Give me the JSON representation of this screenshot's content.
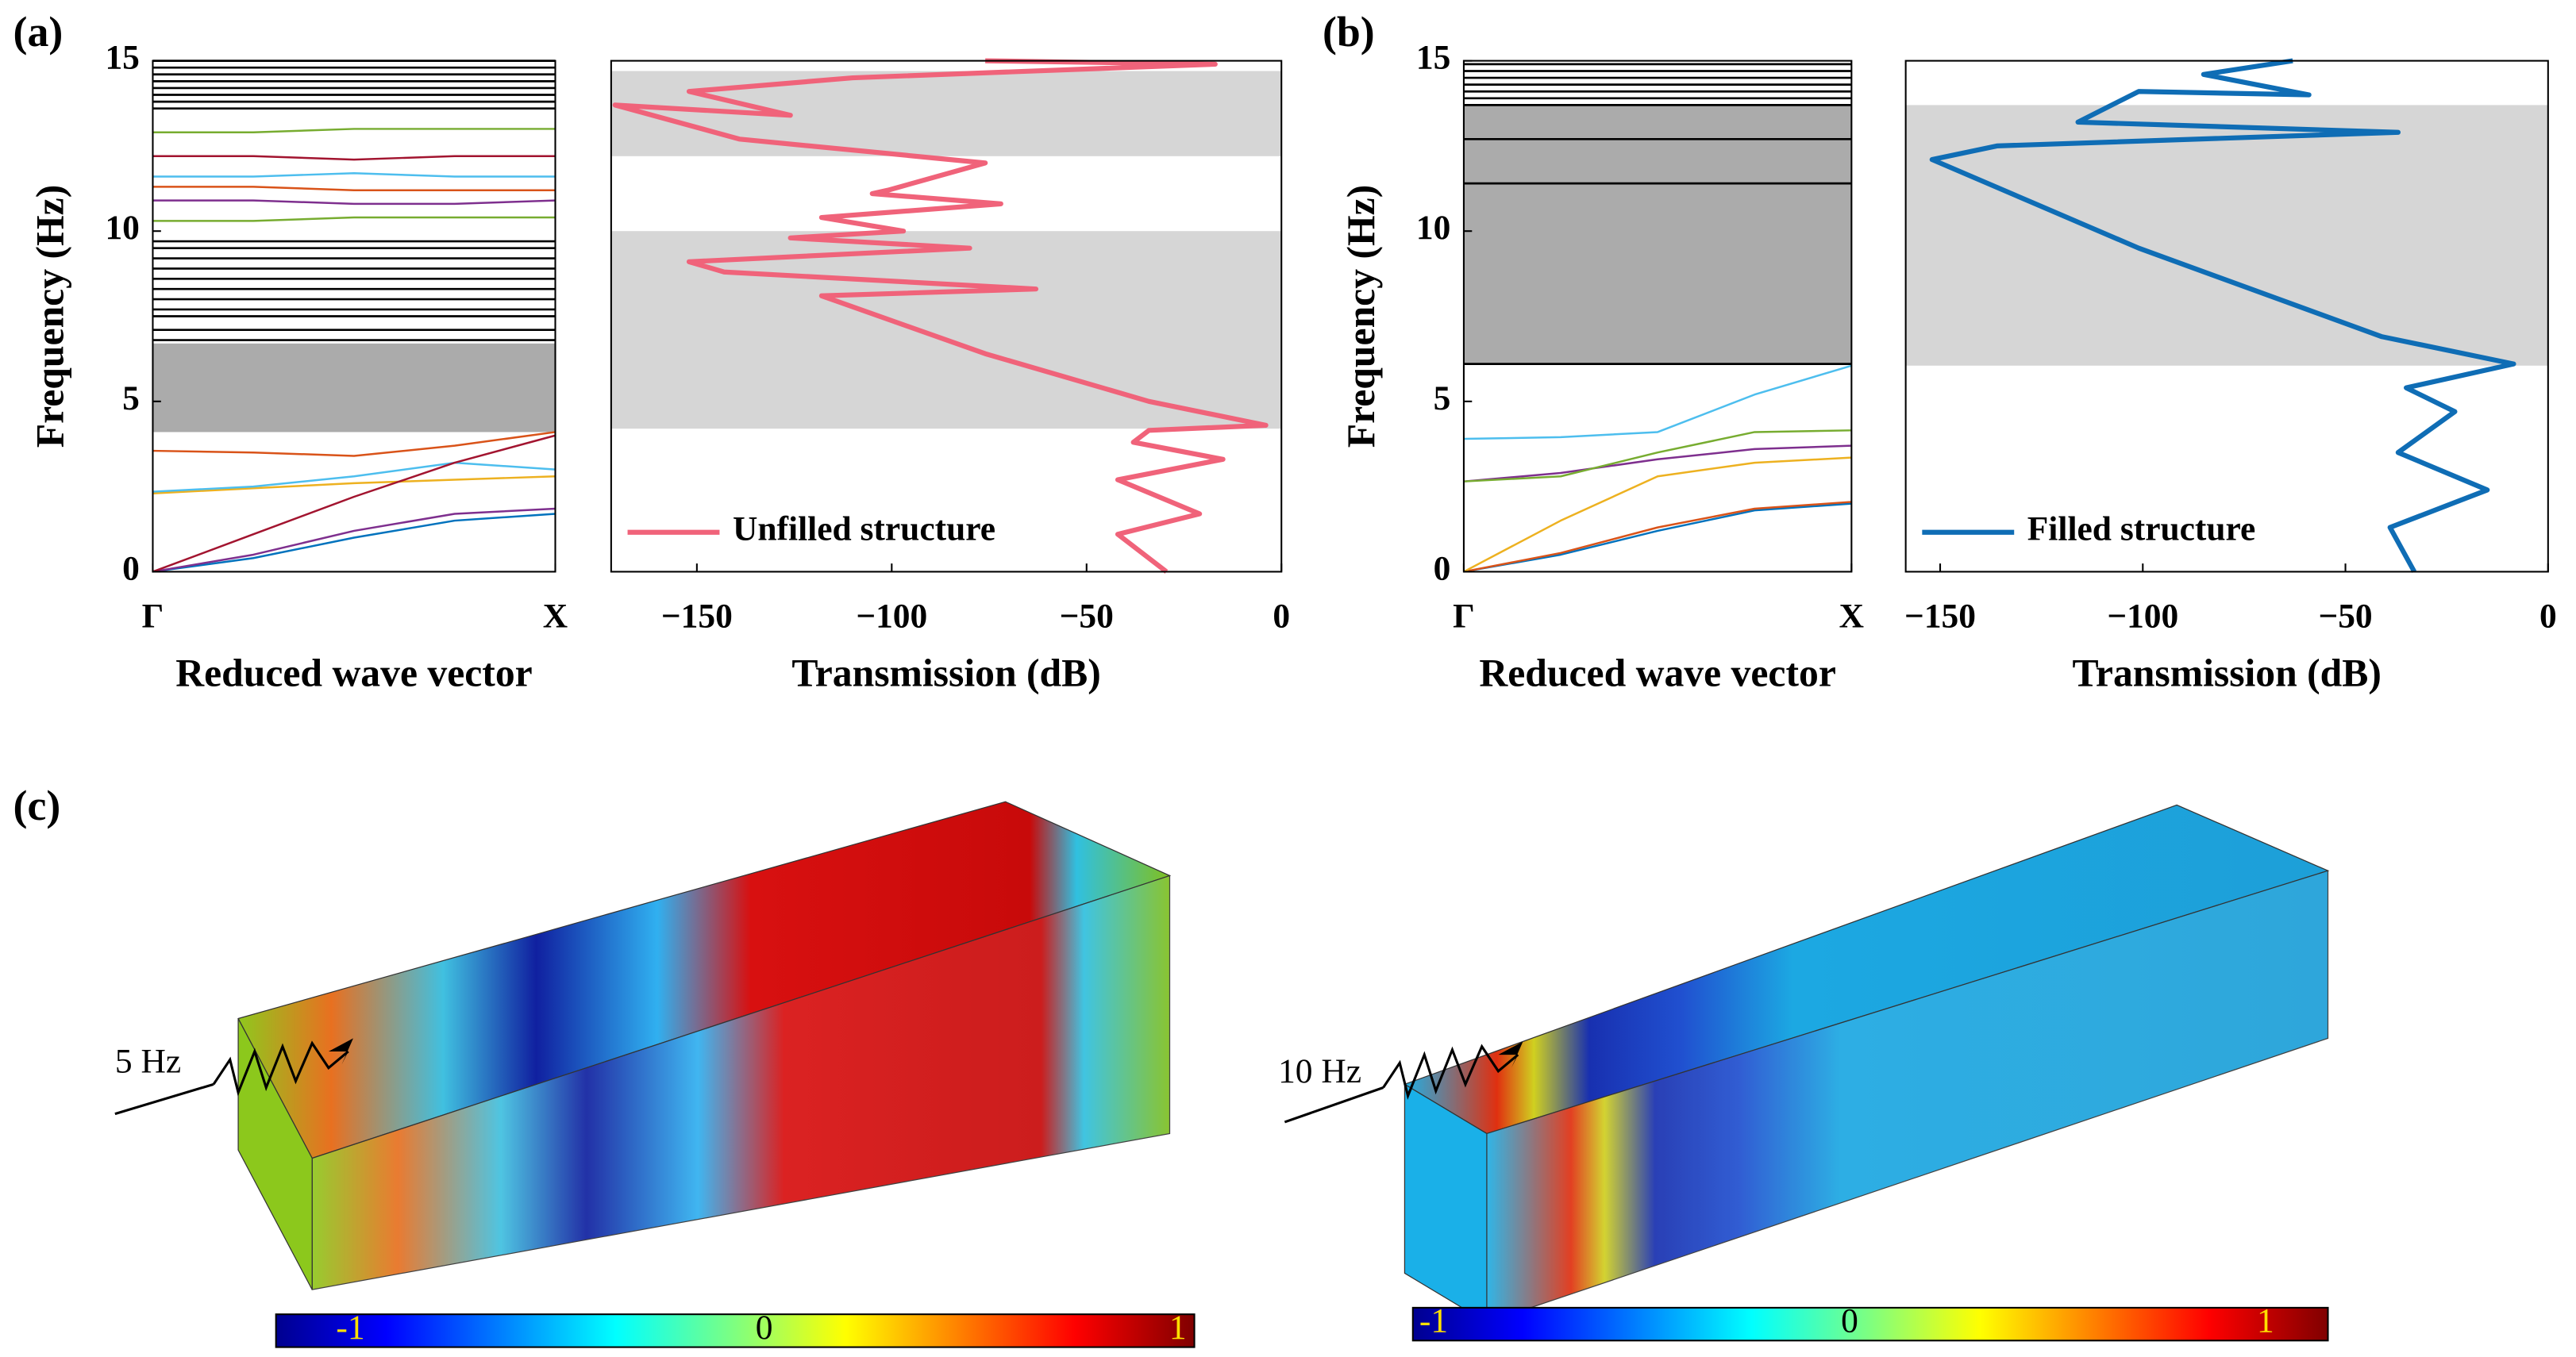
{
  "chart_data": [
    {
      "type": "band",
      "panel_label": "(a)",
      "ylabel": "Frequency (Hz)",
      "xlabel": "Reduced wave vector",
      "xlim": [
        0,
        1
      ],
      "ylim": [
        0,
        15
      ],
      "yticks": [
        0,
        5,
        10,
        15
      ],
      "xticks": [
        {
          "value": 0,
          "label": "Γ"
        },
        {
          "value": 1,
          "label": "X"
        }
      ],
      "shade_color": "#ababab",
      "bandgaps": [
        [
          4.1,
          6.7
        ]
      ],
      "flat_bands": [
        6.8,
        7.1,
        7.5,
        7.7,
        8.0,
        8.3,
        8.6,
        8.9,
        9.2,
        9.5,
        9.7,
        13.6,
        13.8,
        14.0,
        14.2,
        14.4,
        14.6,
        14.8,
        15.0
      ],
      "x": [
        0,
        0.25,
        0.5,
        0.75,
        1
      ],
      "series": [
        {
          "color": "#0072bd",
          "values": [
            0,
            0.4,
            1.0,
            1.5,
            1.7
          ]
        },
        {
          "color": "#7e2f8e",
          "values": [
            0,
            0.5,
            1.2,
            1.7,
            1.85
          ]
        },
        {
          "color": "#edb120",
          "values": [
            2.3,
            2.45,
            2.6,
            2.7,
            2.8
          ]
        },
        {
          "color": "#4dbeee",
          "values": [
            2.35,
            2.5,
            2.8,
            3.2,
            3.0
          ]
        },
        {
          "color": "#d95319",
          "values": [
            3.55,
            3.5,
            3.4,
            3.7,
            4.1
          ]
        },
        {
          "color": "#a2142f",
          "values": [
            0,
            1.1,
            2.2,
            3.2,
            4.0
          ]
        },
        {
          "color": "#77ac30",
          "values": [
            10.3,
            10.3,
            10.4,
            10.4,
            10.4
          ]
        },
        {
          "color": "#7e2f8e",
          "values": [
            10.9,
            10.9,
            10.8,
            10.8,
            10.9
          ]
        },
        {
          "color": "#d95319",
          "values": [
            11.3,
            11.3,
            11.2,
            11.2,
            11.2
          ]
        },
        {
          "color": "#4dbeee",
          "values": [
            11.6,
            11.6,
            11.7,
            11.6,
            11.6
          ]
        },
        {
          "color": "#a2142f",
          "values": [
            12.2,
            12.2,
            12.1,
            12.2,
            12.2
          ]
        },
        {
          "color": "#77ac30",
          "values": [
            12.9,
            12.9,
            13.0,
            13.0,
            13.0
          ]
        }
      ]
    },
    {
      "type": "transmission",
      "xlabel": "Transmission (dB)",
      "xlim": [
        -172,
        0
      ],
      "ylim": [
        0,
        15
      ],
      "xticks": [
        {
          "value": -150,
          "label": "−150"
        },
        {
          "value": -100,
          "label": "−100"
        },
        {
          "value": -50,
          "label": "−50"
        },
        0
      ],
      "shade_color": "#d6d6d6",
      "bandgaps": [
        [
          4.2,
          10.0
        ],
        [
          12.2,
          14.7
        ]
      ],
      "legend": "lower left",
      "series": [
        {
          "name": "Unfilled structure",
          "color": "#f0637a",
          "x": [
            -29.5,
            -42,
            -21,
            -42,
            -15,
            -38,
            -34,
            -4,
            -34,
            -76,
            -118,
            -63,
            -143,
            -152,
            -80,
            -126,
            -97,
            -118,
            -72,
            -105,
            -101,
            -76,
            -139,
            -171,
            -126,
            -152,
            -110,
            -17,
            -76
          ],
          "values": [
            0,
            1.1,
            1.7,
            2.7,
            3.3,
            3.8,
            4.15,
            4.3,
            5.0,
            6.4,
            8.1,
            8.3,
            8.8,
            9.1,
            9.5,
            9.8,
            10.0,
            10.4,
            10.8,
            11.1,
            11.2,
            12.0,
            12.7,
            13.7,
            13.4,
            14.1,
            14.5,
            14.9,
            15.0
          ]
        }
      ]
    },
    {
      "type": "band",
      "panel_label": "(b)",
      "ylabel": "Frequency (Hz)",
      "xlabel": "Reduced wave vector",
      "xlim": [
        0,
        1
      ],
      "ylim": [
        0,
        15
      ],
      "yticks": [
        0,
        5,
        10,
        15
      ],
      "xticks": [
        {
          "value": 0,
          "label": "Γ"
        },
        {
          "value": 1,
          "label": "X"
        }
      ],
      "shade_color": "#ababab",
      "bandgaps": [
        [
          6.1,
          13.7
        ]
      ],
      "flat_bands": [
        6.1,
        11.4,
        12.7,
        13.7,
        13.9,
        14.1,
        14.3,
        14.5,
        14.7,
        14.9
      ],
      "x": [
        0,
        0.25,
        0.5,
        0.75,
        1
      ],
      "series": [
        {
          "color": "#0072bd",
          "values": [
            0,
            0.5,
            1.2,
            1.8,
            2.0
          ]
        },
        {
          "color": "#d95319",
          "values": [
            0,
            0.55,
            1.3,
            1.85,
            2.05
          ]
        },
        {
          "color": "#edb120",
          "values": [
            0,
            1.5,
            2.8,
            3.2,
            3.35
          ]
        },
        {
          "color": "#7e2f8e",
          "values": [
            2.65,
            2.9,
            3.3,
            3.6,
            3.7
          ]
        },
        {
          "color": "#77ac30",
          "values": [
            2.65,
            2.8,
            3.5,
            4.1,
            4.15
          ]
        },
        {
          "color": "#4dbeee",
          "values": [
            3.9,
            3.95,
            4.1,
            5.2,
            6.05
          ]
        }
      ]
    },
    {
      "type": "transmission",
      "xlabel": "Transmission (dB)",
      "xlim": [
        -158.5,
        0
      ],
      "ylim": [
        0,
        15
      ],
      "xticks": [
        {
          "value": -150,
          "label": "−150"
        },
        {
          "value": -100,
          "label": "−100"
        },
        {
          "value": -50,
          "label": "−50"
        },
        0
      ],
      "shade_color": "#d6d6d6",
      "bandgaps": [
        [
          6.05,
          13.7
        ]
      ],
      "legend": "lower left",
      "series": [
        {
          "name": "Filled structure",
          "color": "#0f6db5",
          "x": [
            -33,
            -39,
            -15,
            -37,
            -23,
            -35,
            -8.5,
            -41,
            -101,
            -152,
            -136,
            -37,
            -116,
            -101,
            -59,
            -85,
            -63
          ],
          "values": [
            0,
            1.3,
            2.4,
            3.5,
            4.7,
            5.4,
            6.1,
            6.9,
            9.5,
            12.1,
            12.5,
            12.9,
            13.2,
            14.1,
            14.0,
            14.6,
            15.0
          ]
        }
      ]
    }
  ],
  "panel_c": {
    "label": "(c)",
    "fields": [
      {
        "frequency_label": "5 Hz",
        "clim": [
          -1.18,
          1.04
        ],
        "colorbar_ticks": [
          -1,
          0,
          1
        ]
      },
      {
        "frequency_label": "10 Hz",
        "clim": [
          -1.05,
          1.15
        ],
        "colorbar_ticks": [
          -1,
          0,
          1
        ]
      }
    ]
  }
}
